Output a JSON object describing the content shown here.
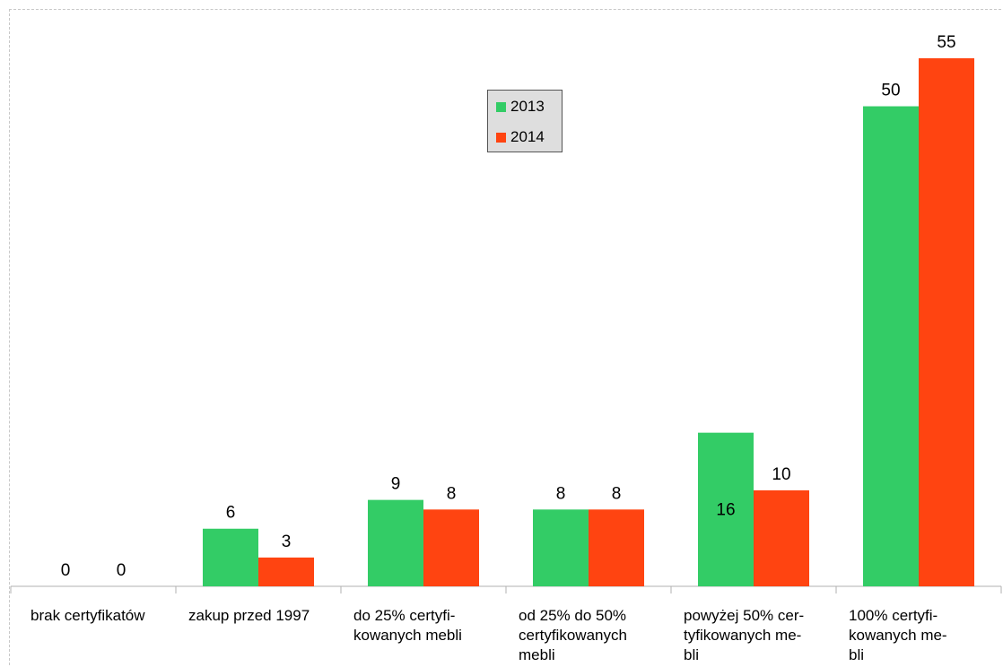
{
  "chart_data": {
    "type": "bar",
    "categories": [
      "brak certyfikatów",
      "zakup przed 1997",
      "do 25% certyfi-\nkowanych mebli",
      "od 25% do 50%\ncertyfikowanych\nmebli",
      "powyżej 50% cer-\ntyfikowanych me-\nbli",
      "100% certyfi-\nkowanych me-\nbli"
    ],
    "series": [
      {
        "name": "2013",
        "color": "#33cc66",
        "values": [
          0,
          6,
          9,
          8,
          16,
          50
        ]
      },
      {
        "name": "2014",
        "color": "#ff4411",
        "values": [
          0,
          3,
          8,
          8,
          10,
          55
        ]
      }
    ],
    "ylim": [
      0,
      60
    ],
    "grid": false,
    "legend_position": "top-center"
  }
}
